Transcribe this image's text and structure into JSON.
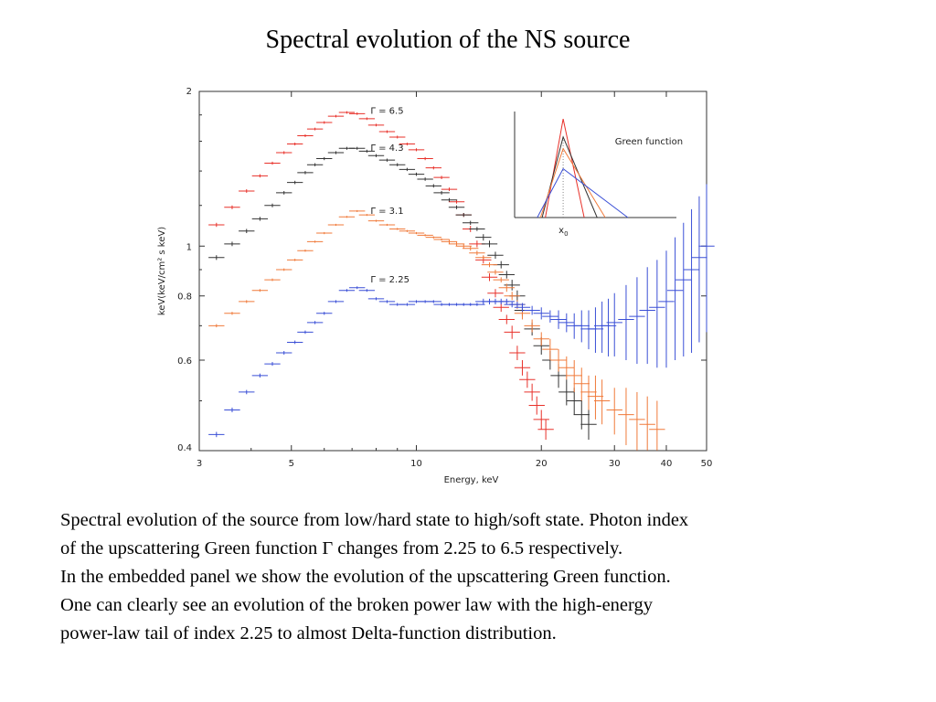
{
  "slide": {
    "title": "Spectral evolution of the NS source",
    "caption": [
      "Spectral evolution of the source from  low/hard state to high/soft state. Photon index",
      "of the upscattering Green function Γ  changes from 2.25 to 6.5 respectively.",
      "In the embedded panel we show the evolution of the upscattering Green function.",
      "One can clearly see an evolution of the broken power law with the high-energy",
      "power-law tail  of index 2.25 to almost Delta-function distribution."
    ]
  },
  "chart_data": [
    {
      "type": "scatter",
      "xlabel": "Energy, keV",
      "ylabel": "keV(keV/cm² s keV)",
      "xscale": "log",
      "yscale": "log",
      "xlim": [
        3,
        50
      ],
      "ylim": [
        0.4,
        2
      ],
      "xticks": [
        3,
        5,
        10,
        20,
        30,
        40,
        50
      ],
      "yticks": [
        0.4,
        0.6,
        0.8,
        1,
        2
      ],
      "grid": false,
      "colors": {
        "red": "#e8312a",
        "black": "#333333",
        "orange": "#f07a3a",
        "blue": "#3a4fd6"
      },
      "series": [
        {
          "name": "Γ = 6.5",
          "color": "#e8312a",
          "x": [
            3.3,
            3.6,
            3.9,
            4.2,
            4.5,
            4.8,
            5.1,
            5.4,
            5.7,
            6.0,
            6.4,
            6.8,
            7.2,
            7.6,
            8.0,
            8.5,
            9.0,
            9.5,
            10,
            10.5,
            11,
            11.5,
            12,
            12.5,
            13,
            13.5,
            14,
            14.5,
            15,
            15.5,
            16,
            16.5,
            17,
            17.5,
            18,
            18.5,
            19,
            19.5,
            20,
            20.5
          ],
          "y": [
            1.1,
            1.19,
            1.28,
            1.37,
            1.45,
            1.52,
            1.58,
            1.64,
            1.69,
            1.74,
            1.79,
            1.82,
            1.81,
            1.77,
            1.72,
            1.67,
            1.63,
            1.58,
            1.54,
            1.48,
            1.42,
            1.36,
            1.29,
            1.22,
            1.15,
            1.08,
            1.01,
            0.94,
            0.87,
            0.81,
            0.76,
            0.72,
            0.68,
            0.62,
            0.58,
            0.55,
            0.52,
            0.49,
            0.46,
            0.44
          ],
          "yerr": [
            0.01,
            0.01,
            0.01,
            0.01,
            0.01,
            0.01,
            0.01,
            0.01,
            0.01,
            0.01,
            0.01,
            0.01,
            0.01,
            0.01,
            0.01,
            0.01,
            0.01,
            0.01,
            0.01,
            0.01,
            0.01,
            0.01,
            0.01,
            0.01,
            0.01,
            0.015,
            0.015,
            0.015,
            0.015,
            0.015,
            0.015,
            0.015,
            0.02,
            0.02,
            0.02,
            0.02,
            0.02,
            0.02,
            0.02,
            0.02
          ]
        },
        {
          "name": "Γ = 4.3",
          "color": "#333333",
          "x": [
            3.3,
            3.6,
            3.9,
            4.2,
            4.5,
            4.8,
            5.1,
            5.4,
            5.7,
            6.0,
            6.4,
            6.8,
            7.2,
            7.6,
            8.0,
            8.5,
            9.0,
            9.5,
            10,
            10.5,
            11,
            11.5,
            12,
            12.5,
            13,
            13.5,
            14,
            14.5,
            15,
            15.5,
            16,
            16.5,
            17,
            17.5,
            18,
            19,
            20,
            21,
            22,
            23,
            24,
            25,
            26
          ],
          "y": [
            0.95,
            1.01,
            1.07,
            1.13,
            1.2,
            1.27,
            1.33,
            1.39,
            1.44,
            1.48,
            1.52,
            1.55,
            1.55,
            1.53,
            1.5,
            1.47,
            1.44,
            1.41,
            1.38,
            1.35,
            1.31,
            1.27,
            1.23,
            1.19,
            1.15,
            1.11,
            1.08,
            1.04,
            1.01,
            0.96,
            0.92,
            0.88,
            0.84,
            0.8,
            0.75,
            0.69,
            0.64,
            0.6,
            0.56,
            0.52,
            0.5,
            0.47,
            0.45
          ],
          "yerr": [
            0.01,
            0.01,
            0.01,
            0.01,
            0.01,
            0.01,
            0.01,
            0.01,
            0.01,
            0.01,
            0.01,
            0.01,
            0.01,
            0.01,
            0.01,
            0.01,
            0.01,
            0.01,
            0.01,
            0.01,
            0.01,
            0.01,
            0.01,
            0.01,
            0.01,
            0.01,
            0.01,
            0.015,
            0.015,
            0.015,
            0.015,
            0.015,
            0.02,
            0.02,
            0.02,
            0.02,
            0.025,
            0.025,
            0.03,
            0.03,
            0.03,
            0.03,
            0.03
          ]
        },
        {
          "name": "Γ = 3.1",
          "color": "#f07a3a",
          "x": [
            3.3,
            3.6,
            3.9,
            4.2,
            4.5,
            4.8,
            5.1,
            5.4,
            5.7,
            6.0,
            6.4,
            6.8,
            7.2,
            7.6,
            8.0,
            8.5,
            9.0,
            9.5,
            10,
            10.5,
            11,
            11.5,
            12,
            12.5,
            13,
            13.5,
            14,
            14.5,
            15,
            15.5,
            16,
            16.5,
            17,
            17.5,
            18,
            19,
            20,
            21,
            22,
            23,
            24,
            25,
            26,
            27,
            28,
            30,
            32,
            34,
            36,
            38
          ],
          "y": [
            0.7,
            0.74,
            0.78,
            0.82,
            0.86,
            0.9,
            0.94,
            0.98,
            1.02,
            1.06,
            1.1,
            1.14,
            1.17,
            1.15,
            1.12,
            1.1,
            1.08,
            1.07,
            1.06,
            1.05,
            1.04,
            1.03,
            1.02,
            1.01,
            1.0,
            0.99,
            0.97,
            0.95,
            0.92,
            0.89,
            0.86,
            0.83,
            0.8,
            0.77,
            0.74,
            0.7,
            0.66,
            0.63,
            0.6,
            0.58,
            0.56,
            0.54,
            0.52,
            0.51,
            0.5,
            0.48,
            0.47,
            0.46,
            0.45,
            0.44
          ],
          "yerr": [
            0.005,
            0.005,
            0.005,
            0.005,
            0.005,
            0.005,
            0.005,
            0.005,
            0.005,
            0.005,
            0.005,
            0.005,
            0.005,
            0.005,
            0.005,
            0.005,
            0.005,
            0.005,
            0.005,
            0.005,
            0.005,
            0.005,
            0.01,
            0.01,
            0.01,
            0.01,
            0.01,
            0.01,
            0.01,
            0.01,
            0.01,
            0.015,
            0.015,
            0.015,
            0.02,
            0.02,
            0.02,
            0.03,
            0.03,
            0.03,
            0.04,
            0.04,
            0.04,
            0.05,
            0.05,
            0.05,
            0.06,
            0.06,
            0.06,
            0.06
          ]
        },
        {
          "name": "Γ = 2.25",
          "color": "#3a4fd6",
          "x": [
            3.3,
            3.6,
            3.9,
            4.2,
            4.5,
            4.8,
            5.1,
            5.4,
            5.7,
            6.0,
            6.4,
            6.8,
            7.2,
            7.6,
            8.0,
            8.5,
            9.0,
            9.5,
            10,
            10.5,
            11,
            11.5,
            12,
            12.5,
            13,
            13.5,
            14,
            14.5,
            15,
            15.5,
            16,
            16.5,
            17,
            17.5,
            18,
            19,
            20,
            21,
            22,
            23,
            24,
            25,
            26,
            27,
            28,
            29,
            30,
            32,
            34,
            36,
            38,
            40,
            42,
            44,
            46,
            48,
            50
          ],
          "y": [
            0.43,
            0.48,
            0.52,
            0.56,
            0.59,
            0.62,
            0.65,
            0.68,
            0.71,
            0.74,
            0.78,
            0.82,
            0.83,
            0.82,
            0.79,
            0.78,
            0.77,
            0.77,
            0.78,
            0.78,
            0.78,
            0.77,
            0.77,
            0.77,
            0.77,
            0.77,
            0.77,
            0.78,
            0.78,
            0.78,
            0.78,
            0.78,
            0.77,
            0.77,
            0.76,
            0.75,
            0.74,
            0.73,
            0.72,
            0.71,
            0.7,
            0.7,
            0.69,
            0.69,
            0.7,
            0.7,
            0.71,
            0.72,
            0.73,
            0.75,
            0.76,
            0.78,
            0.82,
            0.86,
            0.9,
            0.95,
            1.0
          ],
          "yerr": [
            0.005,
            0.005,
            0.005,
            0.005,
            0.005,
            0.005,
            0.005,
            0.005,
            0.005,
            0.005,
            0.005,
            0.005,
            0.005,
            0.005,
            0.005,
            0.005,
            0.005,
            0.005,
            0.005,
            0.005,
            0.005,
            0.005,
            0.005,
            0.005,
            0.005,
            0.005,
            0.005,
            0.01,
            0.01,
            0.01,
            0.01,
            0.01,
            0.01,
            0.01,
            0.015,
            0.015,
            0.02,
            0.02,
            0.03,
            0.03,
            0.04,
            0.05,
            0.06,
            0.07,
            0.08,
            0.09,
            0.1,
            0.12,
            0.14,
            0.16,
            0.18,
            0.2,
            0.22,
            0.25,
            0.28,
            0.3,
            0.32
          ]
        }
      ]
    },
    {
      "type": "line",
      "annotation": "Green function",
      "xlabel": "x",
      "xlabel_sub": "0",
      "xlim": [
        0,
        10
      ],
      "ylim": [
        0,
        10
      ],
      "marker_x": 3,
      "series": [
        {
          "color": "#e8312a",
          "x": [
            1.9,
            3.0,
            4.3
          ],
          "y": [
            0,
            9.3,
            0
          ]
        },
        {
          "color": "#333333",
          "x": [
            1.7,
            3.0,
            5.1
          ],
          "y": [
            0,
            7.6,
            0
          ]
        },
        {
          "color": "#f07a3a",
          "x": [
            1.6,
            3.0,
            5.6
          ],
          "y": [
            0,
            6.5,
            0
          ]
        },
        {
          "color": "#3a4fd6",
          "x": [
            1.4,
            3.0,
            7.0
          ],
          "y": [
            0,
            4.6,
            0
          ]
        }
      ]
    }
  ]
}
